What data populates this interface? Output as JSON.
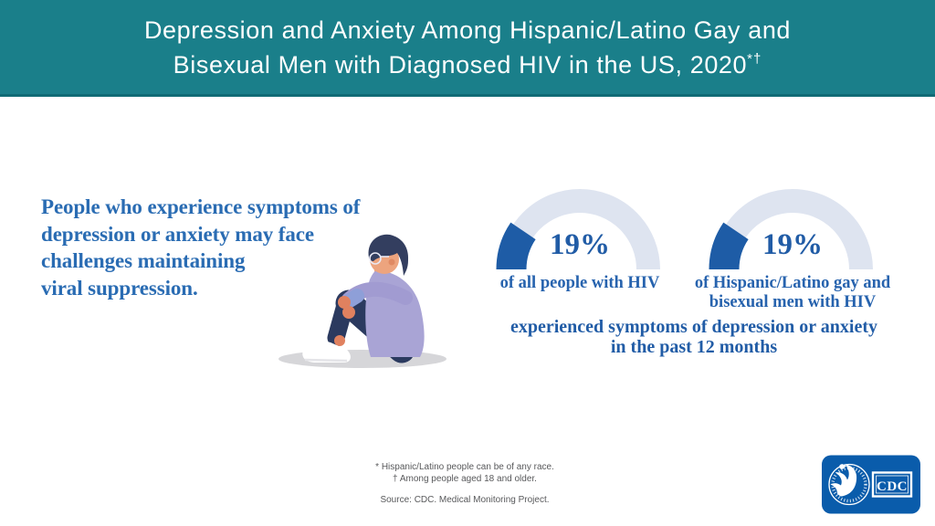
{
  "header": {
    "title_line1": "Depression and Anxiety Among Hispanic/Latino Gay and",
    "title_line2": "Bisexual Men with Diagnosed HIV in the US, 2020",
    "title_sup": "*†",
    "bg_color": "#1A7F8A"
  },
  "statement": {
    "lines": [
      "People who experience symptoms of",
      "depression or anxiety may face",
      "challenges maintaining",
      "viral suppression."
    ],
    "color": "#2A6CB3"
  },
  "illustration": {
    "name": "person-sitting-hugging-knees"
  },
  "chart_data": {
    "type": "gauge",
    "title": "Depression and Anxiety Among Hispanic/Latino Gay and Bisexual Men with Diagnosed HIV in the US, 2020*†",
    "range": [
      0,
      100
    ],
    "fill_color": "#1E5CA6",
    "track_color": "#DEE4F0",
    "gauges": [
      {
        "percent": 19,
        "value_label": "19%",
        "label_lines": [
          "of all people with HIV"
        ]
      },
      {
        "percent": 19,
        "value_label": "19%",
        "label_lines": [
          "of Hispanic/Latino gay and",
          "bisexual men with HIV"
        ]
      }
    ],
    "shared_caption_lines": [
      "experienced symptoms of depression or anxiety",
      "in the past 12 months"
    ]
  },
  "footnotes": {
    "line1": "* Hispanic/Latino people can be of any race.",
    "line2": "† Among people aged 18 and older.",
    "source": "Source: CDC. Medical Monitoring Project."
  },
  "logo": {
    "org": "CDC",
    "bg_color": "#0A5CAB"
  }
}
